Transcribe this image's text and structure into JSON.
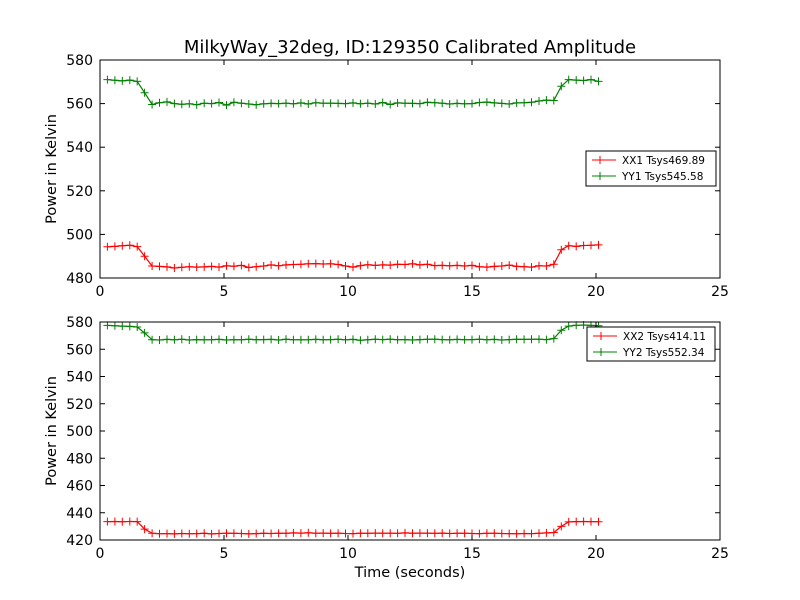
{
  "chart_data": [
    {
      "type": "line",
      "title": "MilkyWay_32deg, ID:129350 Calibrated Amplitude",
      "xlabel": "",
      "ylabel": "Power in Kelvin",
      "xlim": [
        0,
        25
      ],
      "ylim": [
        480,
        580
      ],
      "xticks": [
        "0",
        "5",
        "10",
        "15",
        "20",
        "25"
      ],
      "yticks": [
        "480",
        "500",
        "520",
        "540",
        "560",
        "580"
      ],
      "grid": false,
      "legend_position": "center-right",
      "series": [
        {
          "name": "XX1 Tsys469.89",
          "color": "#ff0000",
          "x": [
            0.3,
            0.6,
            0.9,
            1.2,
            1.5,
            1.8,
            2.1,
            2.4,
            2.7,
            3.0,
            3.3,
            3.6,
            3.9,
            4.2,
            4.5,
            4.8,
            5.1,
            5.4,
            5.7,
            6.0,
            6.3,
            6.6,
            6.9,
            7.2,
            7.5,
            7.8,
            8.1,
            8.4,
            8.7,
            9.0,
            9.3,
            9.6,
            9.9,
            10.2,
            10.5,
            10.8,
            11.1,
            11.4,
            11.7,
            12.0,
            12.3,
            12.6,
            12.9,
            13.2,
            13.5,
            13.8,
            14.1,
            14.4,
            14.7,
            15.0,
            15.3,
            15.6,
            15.9,
            16.2,
            16.5,
            16.8,
            17.1,
            17.4,
            17.7,
            18.0,
            18.3,
            18.6,
            18.9,
            19.2,
            19.5,
            19.8,
            20.1
          ],
          "y": [
            494.3,
            494.5,
            494.8,
            495.0,
            494.4,
            490.0,
            485.5,
            485.3,
            485.1,
            484.6,
            484.9,
            485.2,
            485.0,
            485.1,
            485.3,
            485.0,
            485.6,
            485.4,
            485.8,
            484.8,
            485.2,
            485.5,
            486.0,
            485.6,
            486.0,
            486.2,
            486.3,
            486.5,
            486.6,
            486.4,
            486.5,
            486.2,
            485.5,
            485.0,
            485.7,
            486.1,
            485.8,
            486.0,
            485.9,
            486.3,
            486.2,
            486.5,
            486.0,
            486.3,
            485.7,
            485.8,
            485.6,
            485.8,
            485.5,
            485.8,
            485.2,
            485.0,
            485.3,
            485.5,
            485.9,
            485.3,
            485.2,
            485.0,
            485.6,
            485.5,
            486.3,
            493.0,
            494.8,
            494.5,
            494.9,
            495.0,
            495.2
          ]
        },
        {
          "name": "YY1 Tsys545.58",
          "color": "#008000",
          "x": [
            0.3,
            0.6,
            0.9,
            1.2,
            1.5,
            1.8,
            2.1,
            2.4,
            2.7,
            3.0,
            3.3,
            3.6,
            3.9,
            4.2,
            4.5,
            4.8,
            5.1,
            5.4,
            5.7,
            6.0,
            6.3,
            6.6,
            6.9,
            7.2,
            7.5,
            7.8,
            8.1,
            8.4,
            8.7,
            9.0,
            9.3,
            9.6,
            9.9,
            10.2,
            10.5,
            10.8,
            11.1,
            11.4,
            11.7,
            12.0,
            12.3,
            12.6,
            12.9,
            13.2,
            13.5,
            13.8,
            14.1,
            14.4,
            14.7,
            15.0,
            15.3,
            15.6,
            15.9,
            16.2,
            16.5,
            16.8,
            17.1,
            17.4,
            17.7,
            18.0,
            18.3,
            18.6,
            18.9,
            19.2,
            19.5,
            19.8,
            20.1
          ],
          "y": [
            571.0,
            570.7,
            570.4,
            570.8,
            570.2,
            565.0,
            559.6,
            560.4,
            560.8,
            560.0,
            559.7,
            559.9,
            559.5,
            560.2,
            560.0,
            560.5,
            559.3,
            560.6,
            560.2,
            559.8,
            559.5,
            559.9,
            560.1,
            560.0,
            560.2,
            559.9,
            560.3,
            559.8,
            560.4,
            560.2,
            560.2,
            560.1,
            560.0,
            560.3,
            559.9,
            560.2,
            559.8,
            560.5,
            559.6,
            560.3,
            560.2,
            560.1,
            560.0,
            560.6,
            560.4,
            560.2,
            559.8,
            560.1,
            559.9,
            560.0,
            560.5,
            560.7,
            560.3,
            560.1,
            559.8,
            560.3,
            560.4,
            560.6,
            561.2,
            561.6,
            561.4,
            568.0,
            571.0,
            570.8,
            570.6,
            571.0,
            570.2
          ]
        }
      ]
    },
    {
      "type": "line",
      "title": "",
      "xlabel": "Time (seconds)",
      "ylabel": "Power in Kelvin",
      "xlim": [
        0,
        25
      ],
      "ylim": [
        420,
        580
      ],
      "xticks": [
        "0",
        "5",
        "10",
        "15",
        "20",
        "25"
      ],
      "yticks": [
        "420",
        "440",
        "460",
        "480",
        "500",
        "520",
        "540",
        "560",
        "580"
      ],
      "grid": false,
      "legend_position": "top-right",
      "series": [
        {
          "name": "XX2 Tsys414.11",
          "color": "#ff0000",
          "x": [
            0.3,
            0.6,
            0.9,
            1.2,
            1.5,
            1.8,
            2.1,
            2.4,
            2.7,
            3.0,
            3.3,
            3.6,
            3.9,
            4.2,
            4.5,
            4.8,
            5.1,
            5.4,
            5.7,
            6.0,
            6.3,
            6.6,
            6.9,
            7.2,
            7.5,
            7.8,
            8.1,
            8.4,
            8.7,
            9.0,
            9.3,
            9.6,
            9.9,
            10.2,
            10.5,
            10.8,
            11.1,
            11.4,
            11.7,
            12.0,
            12.3,
            12.6,
            12.9,
            13.2,
            13.5,
            13.8,
            14.1,
            14.4,
            14.7,
            15.0,
            15.3,
            15.6,
            15.9,
            16.2,
            16.5,
            16.8,
            17.1,
            17.4,
            17.7,
            18.0,
            18.3,
            18.6,
            18.9,
            19.2,
            19.5,
            19.8,
            20.1
          ],
          "y": [
            433.5,
            433.6,
            433.4,
            433.6,
            433.5,
            428.0,
            425.0,
            424.6,
            424.7,
            424.5,
            424.8,
            424.6,
            424.7,
            424.9,
            424.5,
            424.8,
            425.0,
            424.9,
            424.8,
            424.5,
            424.7,
            424.9,
            424.8,
            425.0,
            424.9,
            425.2,
            425.1,
            425.3,
            425.0,
            425.1,
            424.9,
            425.0,
            424.8,
            424.7,
            425.0,
            424.9,
            425.1,
            425.0,
            425.0,
            424.9,
            425.2,
            425.0,
            425.1,
            425.0,
            424.9,
            425.1,
            424.8,
            424.9,
            425.0,
            424.8,
            424.7,
            424.9,
            425.0,
            424.8,
            424.7,
            424.6,
            424.8,
            424.7,
            424.9,
            425.2,
            425.5,
            430.0,
            433.3,
            433.5,
            433.6,
            433.5,
            433.4
          ]
        },
        {
          "name": "YY2 Tsys552.34",
          "color": "#008000",
          "x": [
            0.3,
            0.6,
            0.9,
            1.2,
            1.5,
            1.8,
            2.1,
            2.4,
            2.7,
            3.0,
            3.3,
            3.6,
            3.9,
            4.2,
            4.5,
            4.8,
            5.1,
            5.4,
            5.7,
            6.0,
            6.3,
            6.6,
            6.9,
            7.2,
            7.5,
            7.8,
            8.1,
            8.4,
            8.7,
            9.0,
            9.3,
            9.6,
            9.9,
            10.2,
            10.5,
            10.8,
            11.1,
            11.4,
            11.7,
            12.0,
            12.3,
            12.6,
            12.9,
            13.2,
            13.5,
            13.8,
            14.1,
            14.4,
            14.7,
            15.0,
            15.3,
            15.6,
            15.9,
            16.2,
            16.5,
            16.8,
            17.1,
            17.4,
            17.7,
            18.0,
            18.3,
            18.6,
            18.9,
            19.2,
            19.5,
            19.8,
            20.1
          ],
          "y": [
            577.5,
            577.2,
            577.0,
            576.8,
            576.3,
            572.0,
            567.0,
            566.8,
            567.2,
            566.9,
            567.3,
            566.8,
            567.1,
            566.9,
            567.0,
            567.2,
            566.8,
            567.0,
            566.9,
            567.3,
            567.0,
            567.1,
            567.2,
            566.8,
            567.3,
            567.0,
            566.9,
            567.0,
            567.2,
            567.0,
            567.1,
            567.3,
            566.9,
            567.2,
            566.6,
            567.0,
            567.3,
            567.1,
            567.4,
            567.0,
            567.1,
            566.8,
            567.1,
            567.3,
            567.4,
            567.1,
            566.9,
            567.2,
            567.0,
            567.1,
            567.3,
            567.0,
            567.2,
            566.8,
            567.1,
            567.3,
            567.2,
            567.3,
            567.4,
            567.1,
            567.8,
            574.0,
            577.0,
            577.6,
            577.8,
            577.5,
            577.3
          ]
        }
      ]
    }
  ]
}
